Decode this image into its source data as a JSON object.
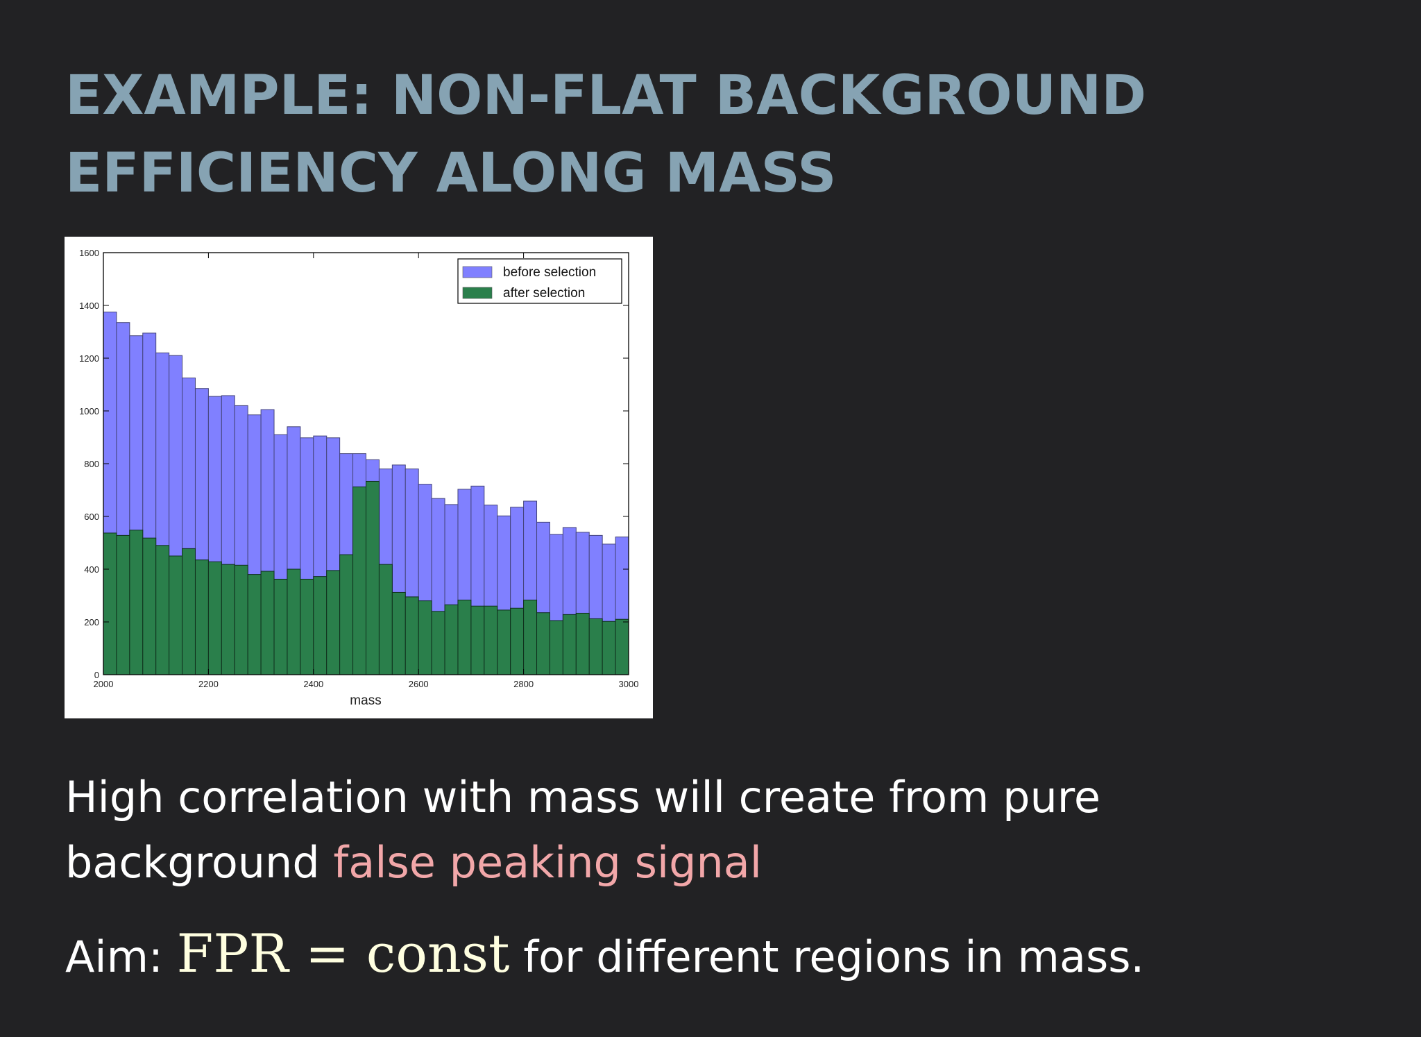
{
  "slide": {
    "title_line1": "EXAMPLE: NON-FLAT BACKGROUND",
    "title_line2": "EFFICIENCY ALONG MASS",
    "body_line1": "High correlation with mass will create from pure",
    "body_line2_prefix": "background ",
    "body_line2_highlight": "false peaking signal",
    "aim_prefix": "Aim: ",
    "aim_math_fpr": "FPR",
    "aim_math_eq": " = ",
    "aim_math_const": "const",
    "aim_suffix": " for different regions in mass.",
    "colors": {
      "background": "#222224",
      "title": "#86a3b3",
      "text": "#ffffff",
      "highlight": "#f2a7a9",
      "math": "#ffffe0"
    }
  },
  "chart_data": {
    "type": "bar",
    "subtype": "histogram",
    "xlabel": "mass",
    "ylabel": "",
    "title": "",
    "xlim": [
      2000,
      3000
    ],
    "ylim": [
      0,
      1600
    ],
    "bin_width": 25,
    "x_ticks": [
      2000,
      2200,
      2400,
      2600,
      2800,
      3000
    ],
    "y_ticks": [
      0,
      200,
      400,
      600,
      800,
      1000,
      1200,
      1400,
      1600
    ],
    "legend_position": "top-right",
    "grid": false,
    "series": [
      {
        "name": "before selection",
        "color": "#8080ff",
        "values": [
          1375,
          1335,
          1285,
          1295,
          1220,
          1210,
          1125,
          1085,
          1055,
          1058,
          1020,
          985,
          1005,
          910,
          940,
          898,
          905,
          898,
          838,
          838,
          815,
          780,
          795,
          780,
          722,
          668,
          645,
          703,
          715,
          643,
          602,
          635,
          658,
          578,
          532,
          558,
          540,
          528,
          495,
          522
        ]
      },
      {
        "name": "after selection",
        "color": "#2a7f4b",
        "values": [
          537,
          528,
          548,
          518,
          490,
          450,
          478,
          435,
          428,
          418,
          415,
          380,
          392,
          362,
          400,
          362,
          372,
          395,
          455,
          712,
          733,
          418,
          312,
          295,
          280,
          240,
          265,
          283,
          260,
          260,
          245,
          252,
          283,
          235,
          205,
          228,
          233,
          212,
          202,
          210
        ]
      }
    ]
  }
}
